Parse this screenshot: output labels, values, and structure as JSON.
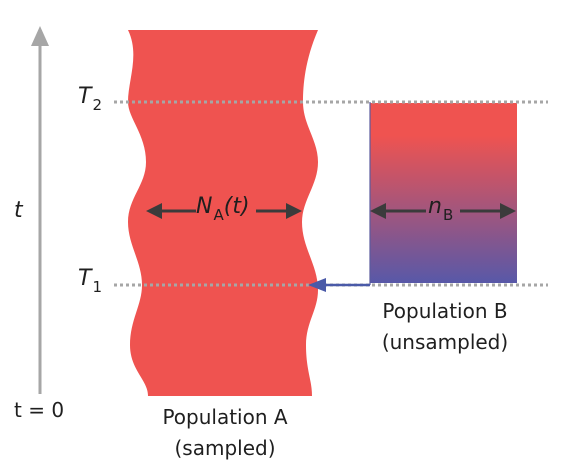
{
  "time_axis": {
    "label": "t",
    "origin_label": "t = 0"
  },
  "times": {
    "t2": {
      "symbol": "T",
      "subscript": "2"
    },
    "t1": {
      "symbol": "T",
      "subscript": "1"
    }
  },
  "population_a": {
    "size_symbol": "N",
    "size_subscript": "A",
    "size_argument": "(t)",
    "name": "Population A",
    "status": "(sampled)",
    "color": "#ef5350"
  },
  "population_b": {
    "size_symbol": "n",
    "size_subscript": "B",
    "name": "Population B",
    "status": "(unsampled)",
    "gradient_top": "#ef5350",
    "gradient_bottom": "#5858a8"
  },
  "colors": {
    "axis": "#a6a6a6",
    "dotted_line": "#a6a6a6",
    "arrow": "#3b3b3b",
    "migration_arrow": "#4a5aa8"
  }
}
